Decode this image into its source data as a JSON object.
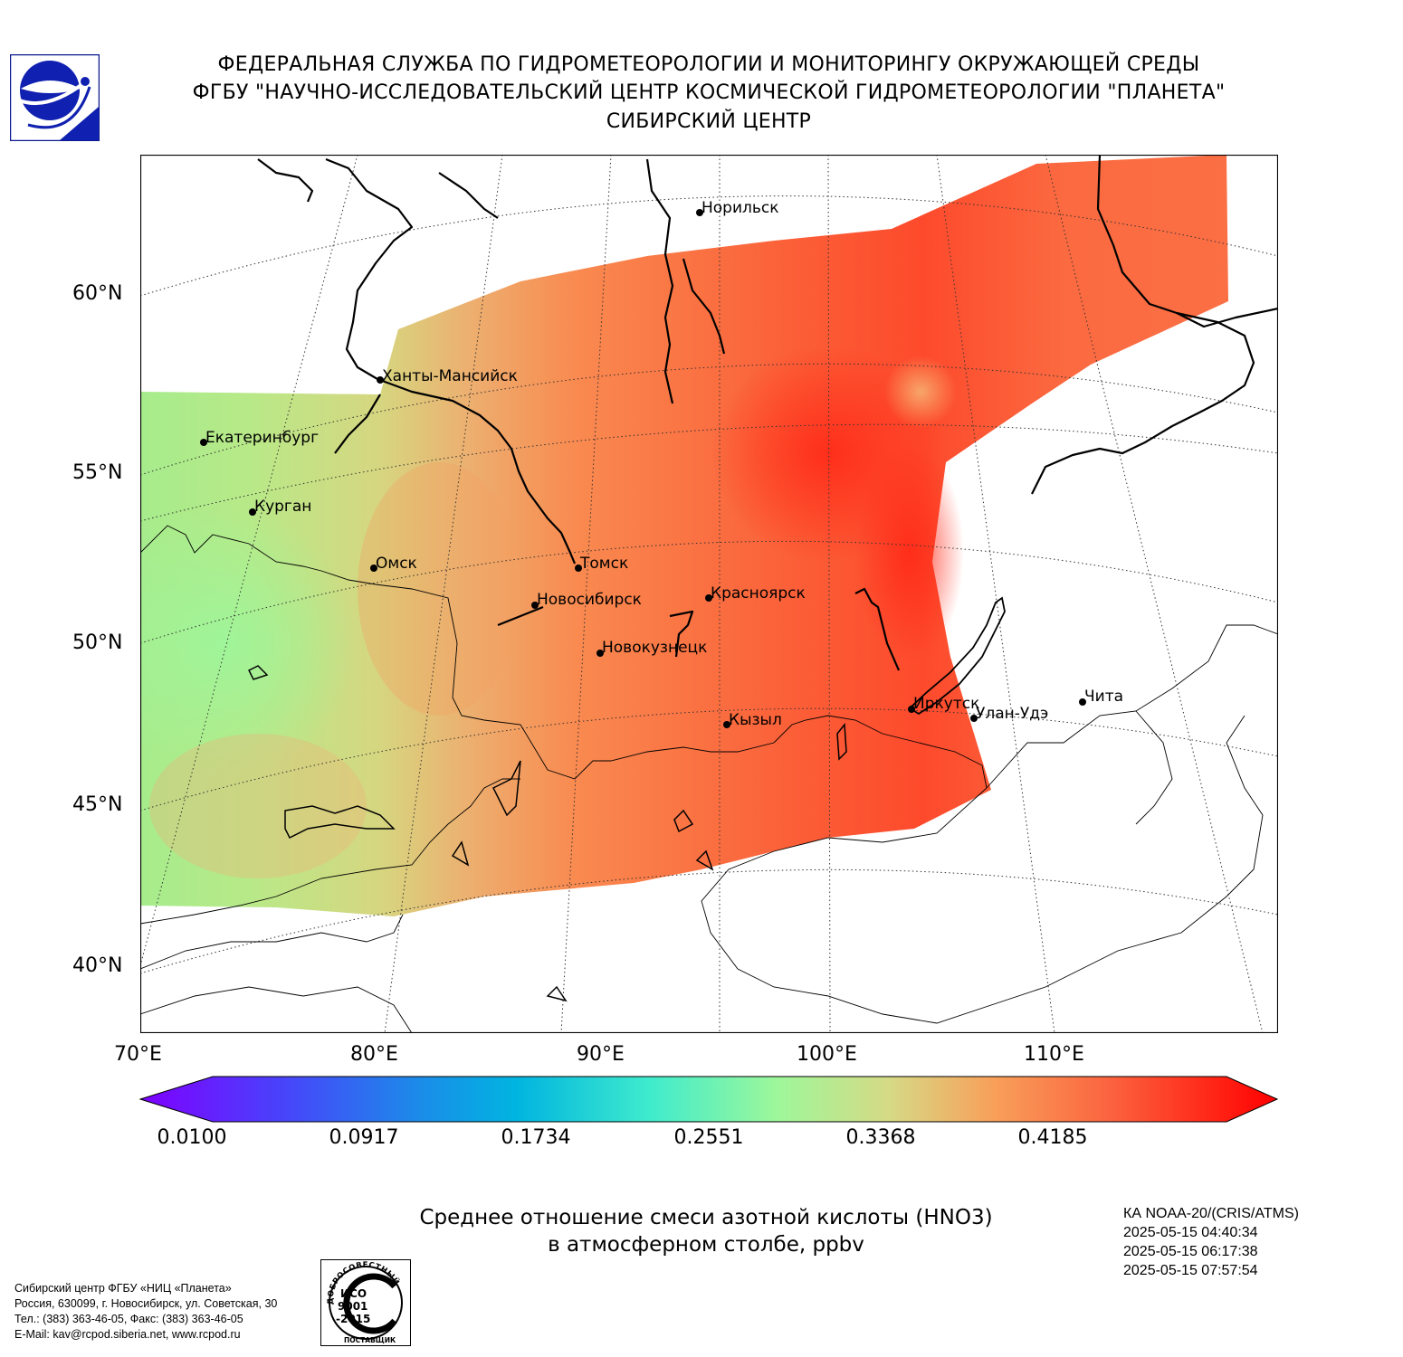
{
  "header": {
    "line1": "ФЕДЕРАЛЬНАЯ СЛУЖБА ПО ГИДРОМЕТЕОРОЛОГИИ И МОНИТОРИНГУ ОКРУЖАЮЩЕЙ СРЕДЫ",
    "line2": "ФГБУ \"НАУЧНО-ИССЛЕДОВАТЕЛЬСКИЙ ЦЕНТР КОСМИЧЕСКОЙ ГИДРОМЕТЕОРОЛОГИИ \"ПЛАНЕТА\"",
    "line3": "СИБИРСКИЙ ЦЕНТР"
  },
  "logo_icon": "planeta-logo-icon",
  "map": {
    "lat_labels": [
      "60°N",
      "55°N",
      "50°N",
      "45°N",
      "40°N"
    ],
    "lon_labels": [
      "70°E",
      "80°E",
      "90°E",
      "100°E",
      "110°E"
    ],
    "cities": [
      {
        "name": "Норильск"
      },
      {
        "name": "Ханты-Мансийск"
      },
      {
        "name": "Екатеринбург"
      },
      {
        "name": "Курган"
      },
      {
        "name": "Омск"
      },
      {
        "name": "Томск"
      },
      {
        "name": "Новосибирск"
      },
      {
        "name": "Красноярск"
      },
      {
        "name": "Новокузнецк"
      },
      {
        "name": "Кызыл"
      },
      {
        "name": "Иркутск"
      },
      {
        "name": "Улан-Удэ"
      },
      {
        "name": "Чита"
      }
    ],
    "colors": {
      "low": "#7f00ff",
      "mid": "#9ef79a",
      "high": "#ff0000",
      "field_west": "#d2d982",
      "field_east": "#f9663e"
    }
  },
  "colorbar": {
    "tick_labels": [
      "0.0100",
      "0.0917",
      "0.1734",
      "0.2551",
      "0.3368",
      "0.4185"
    ],
    "extend": "both"
  },
  "title": {
    "line1": "Среднее отношение смеси азотной кислоты (HNO3)",
    "line2": "в атмосферном столбе, ppbv"
  },
  "satellite": {
    "name": "КА NOAA-20/(CRIS/ATMS)",
    "times": [
      "2025-05-15 04:40:34",
      "2025-05-15 06:17:38",
      "2025-05-15 07:57:54"
    ]
  },
  "contacts": {
    "line1": "Сибирский центр ФГБУ «НИЦ «Планета»",
    "line2": "Россия, 630099, г. Новосибирск, ул. Советская, 30",
    "line3": "Тел.: (383) 363-46-05, Факс: (383) 363-46-05",
    "line4": "E-Mail: kav@rcpod.siberia.net, www.rcpod.ru"
  },
  "iso_badge": {
    "arc_text": "ДОБРОСОВЕСТНЫЙ",
    "line1": "ИСО",
    "line2": "9001",
    "line3": "-2015",
    "bottom_text": "ПОСТАВЩИК"
  }
}
